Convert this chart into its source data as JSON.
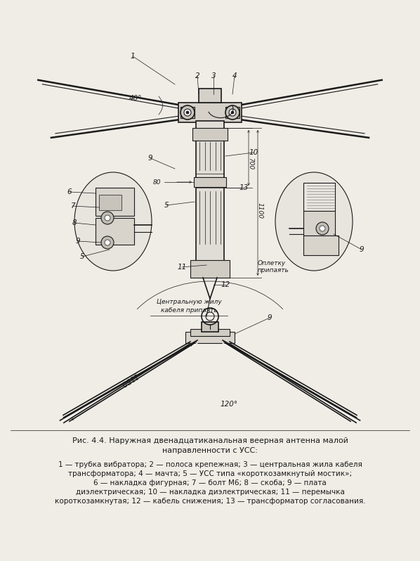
{
  "bg_color": "#f0ede6",
  "line_color": "#1a1a1a",
  "fig_width": 5.98,
  "fig_height": 7.98,
  "title_line1": "Рис. 4.4. Наружная двенадцатиканальная веерная антенна малой",
  "title_line2": "направленности с УСС:",
  "caption": "1 — трубка вибратора; 2 — полоса крепежная; 3 — центральная жила кабеля\nтрансформатора; 4 — мачта; 5 — УСС типа «короткозамкнутый мостик»;\n6 — накладка фигурная; 7 — болт М6; 8 — скоба; 9 — плата\nдиэлектрическая; 10 — накладка диэлектрическая; 11 — перемычка\nкороткозамкнутая; 12 — кабель снижения; 13 — трансформатор согласования."
}
